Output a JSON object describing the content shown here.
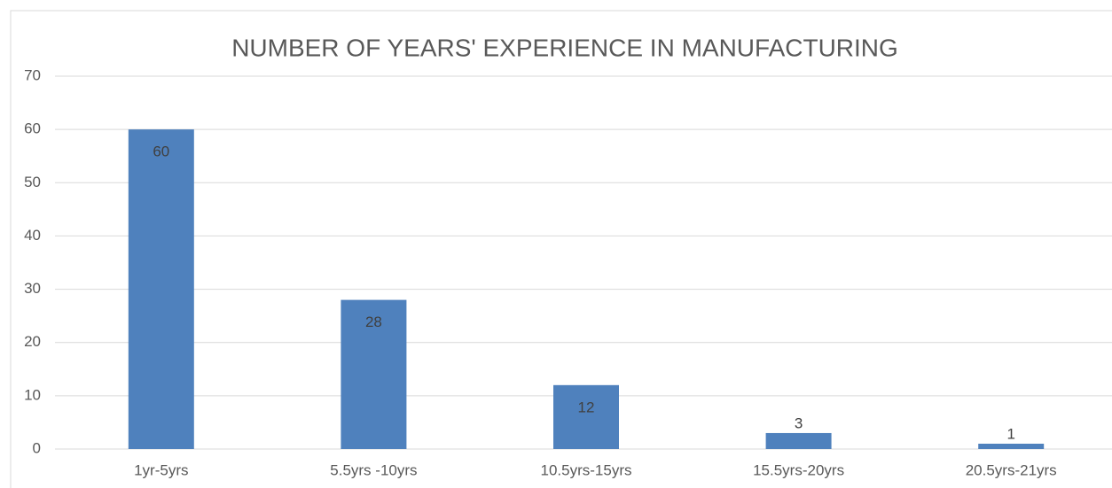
{
  "chart_data": {
    "type": "bar",
    "title": "NUMBER OF YEARS' EXPERIENCE IN MANUFACTURING",
    "categories": [
      "1yr-5yrs",
      "5.5yrs -10yrs",
      "10.5yrs-15yrs",
      "15.5yrs-20yrs",
      "20.5yrs-21yrs"
    ],
    "values": [
      60,
      28,
      12,
      3,
      1
    ],
    "color": "#4f81bd",
    "ylim": [
      0,
      70
    ],
    "yticks": [
      0,
      10,
      20,
      30,
      40,
      50,
      60,
      70
    ],
    "grid": true
  }
}
